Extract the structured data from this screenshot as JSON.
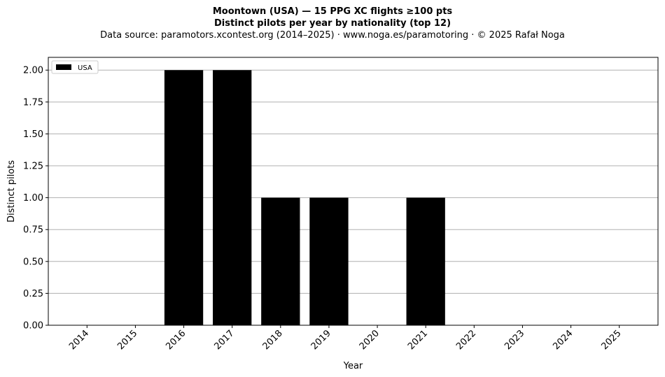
{
  "title_line1": "Moontown (USA)  —  15 PPG XC flights ≥100 pts",
  "title_line2": "Distinct pilots per year by nationality (top 12)",
  "subtitle": "Data source: paramotors.xcontest.org (2014–2025)  ·  www.noga.es/paramotoring  ·  © 2025 Rafał Noga",
  "chart_data": {
    "type": "bar",
    "title": "Moontown (USA)  —  15 PPG XC flights ≥100 pts",
    "subtitle": "Distinct pilots per year by nationality (top 12)",
    "xlabel": "Year",
    "ylabel": "Distinct pilots",
    "categories": [
      "2014",
      "2015",
      "2016",
      "2017",
      "2018",
      "2019",
      "2020",
      "2021",
      "2022",
      "2023",
      "2024",
      "2025"
    ],
    "series": [
      {
        "name": "USA",
        "color": "#000000",
        "values": [
          0,
          0,
          2,
          2,
          1,
          1,
          0,
          1,
          0,
          0,
          0,
          0
        ]
      }
    ],
    "ylim": [
      0,
      2.1
    ],
    "yticks": [
      0,
      0.25,
      0.5,
      0.75,
      1.0,
      1.25,
      1.5,
      1.75,
      2.0
    ],
    "ytick_labels": [
      "0.00",
      "0.25",
      "0.50",
      "0.75",
      "1.00",
      "1.25",
      "1.50",
      "1.75",
      "2.00"
    ],
    "grid": "y",
    "grid_color": "#b0b0b0",
    "legend_position": "top-left"
  }
}
